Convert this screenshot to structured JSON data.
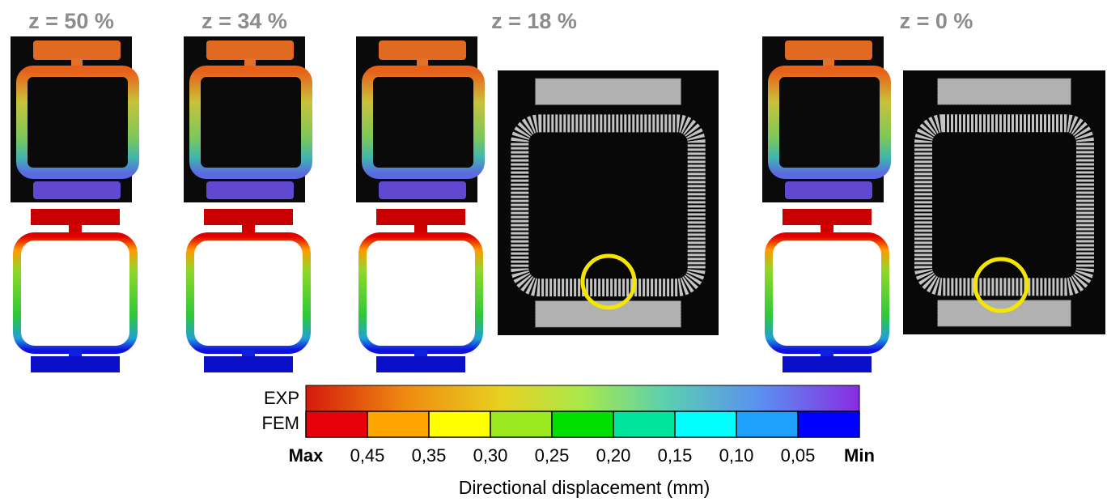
{
  "column_labels": [
    "z = 50 %",
    "z = 34 %",
    "z = 18 %",
    "z = 0 %"
  ],
  "colorbar": {
    "rows": [
      "EXP",
      "FEM"
    ],
    "fem_colors": [
      "#e8000b",
      "#ffa500",
      "#ffff00",
      "#9be81e",
      "#00e000",
      "#00e59c",
      "#00ffff",
      "#1ea0ff",
      "#0000ff"
    ],
    "ticks": [
      "Max",
      "0,45",
      "0,35",
      "0,30",
      "0,25",
      "0,20",
      "0,15",
      "0,10",
      "0,05",
      "Min"
    ],
    "label": "Directional displacement (mm)"
  }
}
